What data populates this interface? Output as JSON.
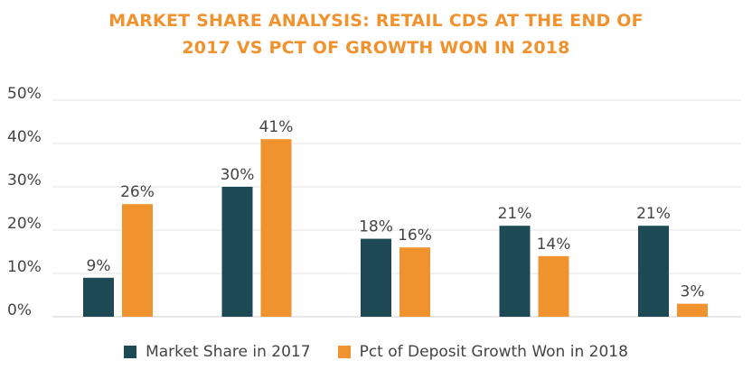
{
  "chart_data": {
    "type": "bar",
    "title_lines": [
      "MARKET SHARE ANALYSIS: RETAIL CDS AT THE END OF",
      "2017 VS PCT OF GROWTH WON IN 2018"
    ],
    "xlabel": "",
    "ylabel": "",
    "ylim": [
      0,
      50
    ],
    "yticks": [
      "0%",
      "10%",
      "20%",
      "30%",
      "40%",
      "50%"
    ],
    "ytick_values": [
      0,
      10,
      20,
      30,
      40,
      50
    ],
    "categories": [
      "",
      "",
      "",
      "",
      ""
    ],
    "series": [
      {
        "name": "Market Share in 2017",
        "color": "#1e4a55",
        "values": [
          9,
          30,
          18,
          21,
          21
        ],
        "labels": [
          "9%",
          "30%",
          "18%",
          "21%",
          "21%"
        ]
      },
      {
        "name": "Pct of Deposit Growth Won in 2018",
        "color": "#f0922e",
        "values": [
          26,
          41,
          16,
          14,
          3
        ],
        "labels": [
          "26%",
          "41%",
          "16%",
          "14%",
          "3%"
        ]
      }
    ],
    "legend_position": "bottom",
    "grid": true
  }
}
